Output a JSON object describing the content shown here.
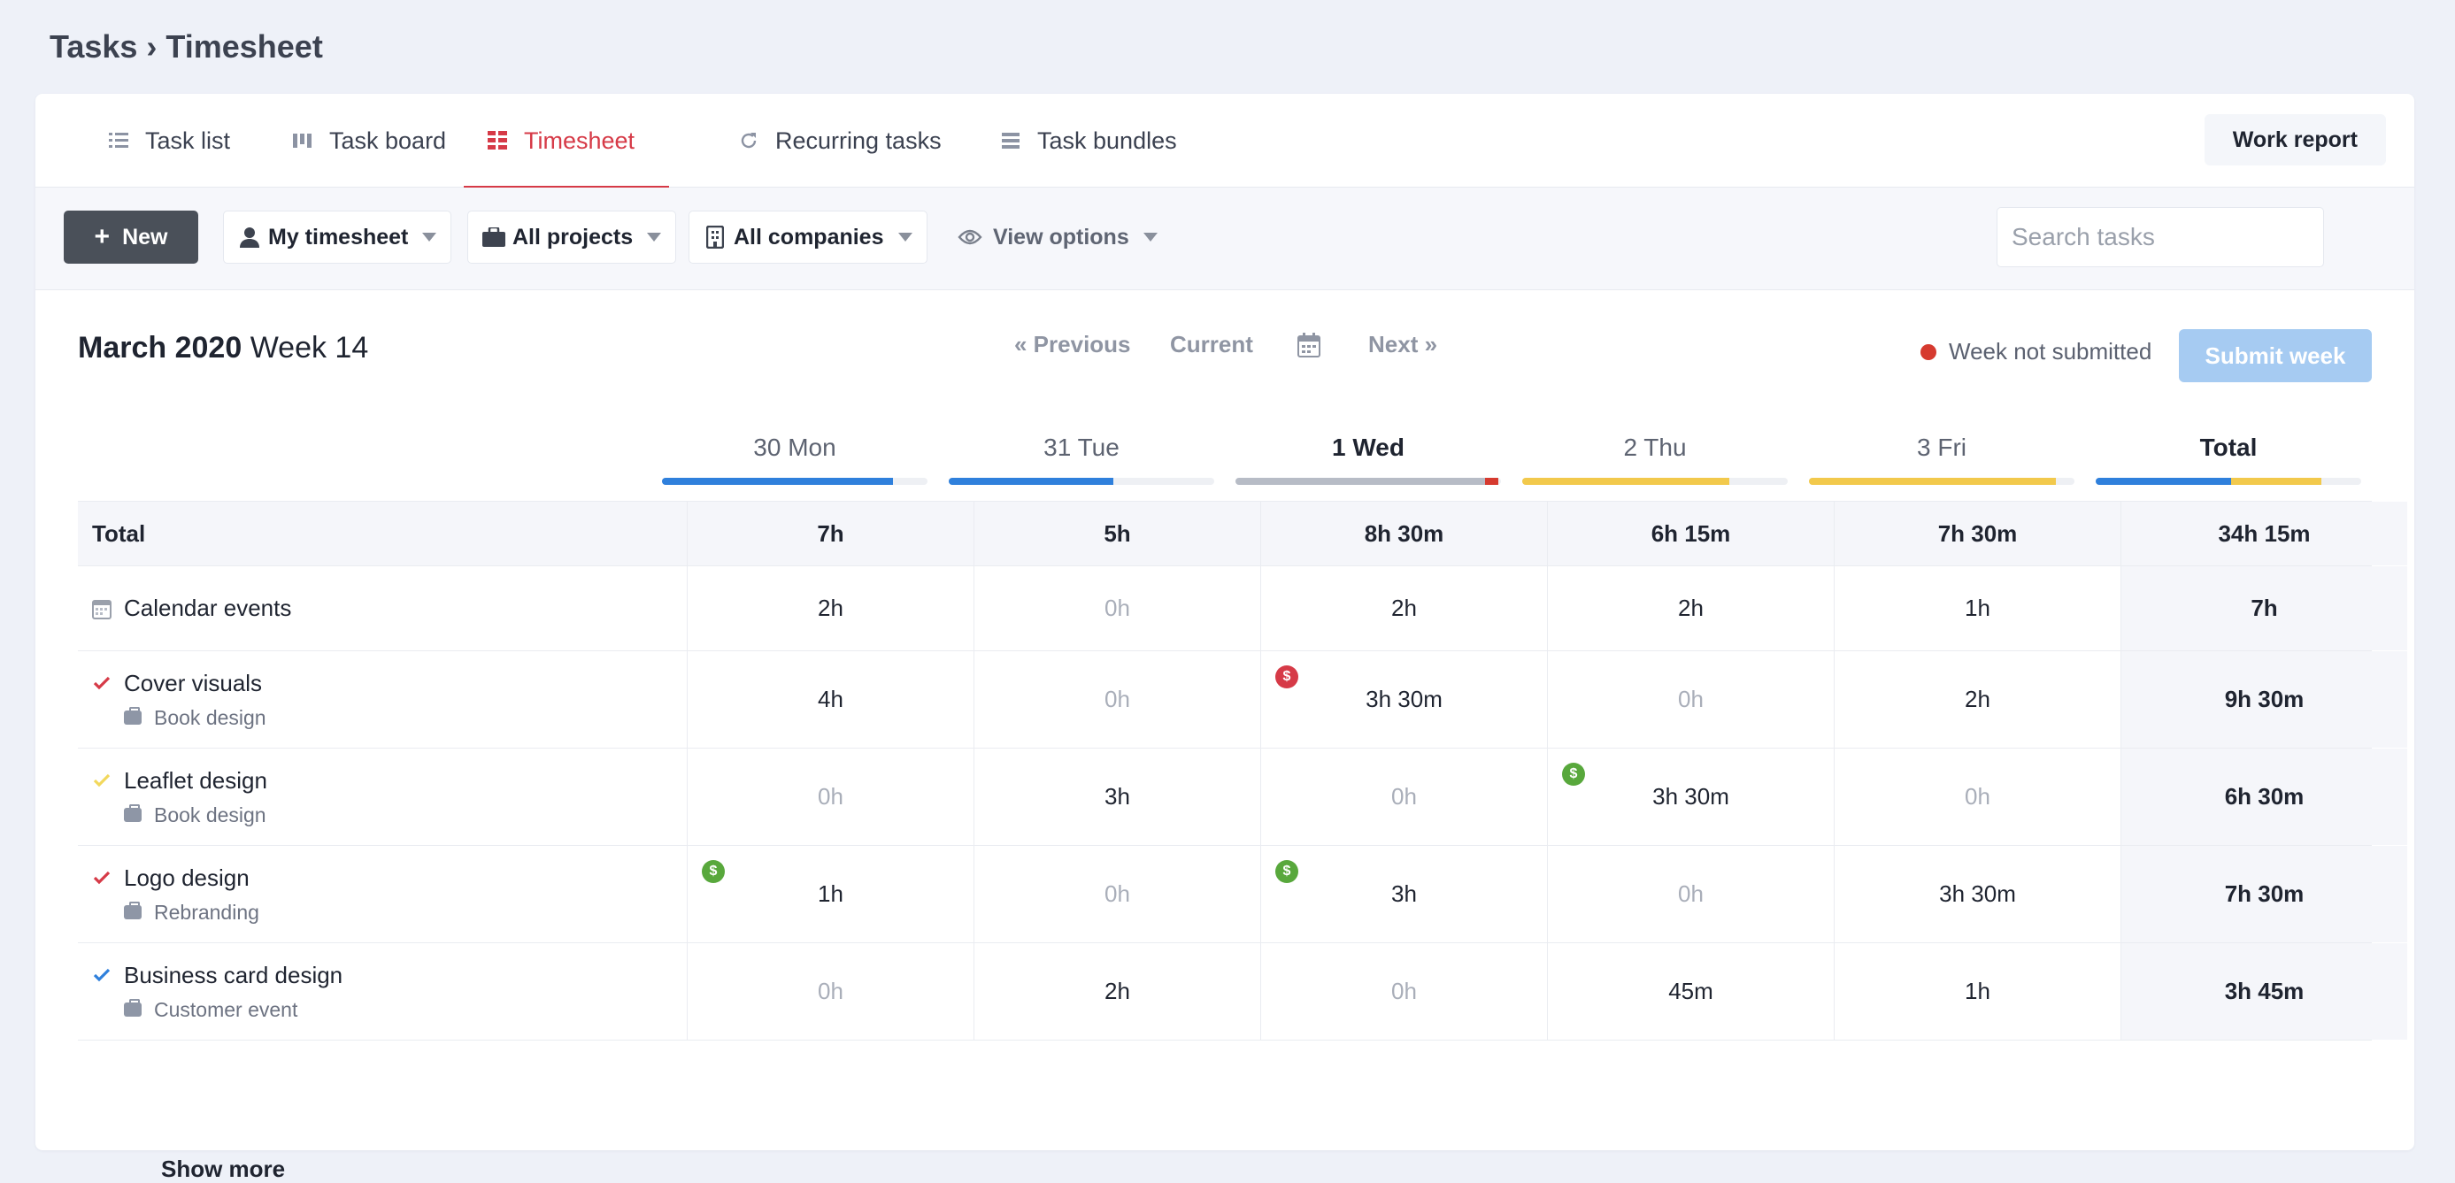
{
  "breadcrumb": "Tasks › Timesheet",
  "tabs": [
    {
      "label": "Task list",
      "icon": "list-icon"
    },
    {
      "label": "Task board",
      "icon": "board-icon"
    },
    {
      "label": "Timesheet",
      "icon": "timesheet-icon",
      "active": true
    },
    {
      "label": "Recurring tasks",
      "icon": "refresh-icon"
    },
    {
      "label": "Task bundles",
      "icon": "bundle-icon"
    }
  ],
  "work_report": "Work report",
  "toolbar": {
    "new_label": "New",
    "my_timesheet": "My timesheet",
    "all_projects": "All projects",
    "all_companies": "All companies",
    "view_options": "View options",
    "search_placeholder": "Search tasks"
  },
  "week": {
    "month": "March 2020",
    "week": "Week 14",
    "previous": "« Previous",
    "current": "Current",
    "next": "Next »",
    "status": "Week not submitted",
    "submit": "Submit week"
  },
  "days": [
    {
      "label": "30 Mon",
      "bold": false,
      "bar": [
        {
          "pct": 87,
          "color": "#2f80dc"
        }
      ]
    },
    {
      "label": "31 Tue",
      "bold": false,
      "bar": [
        {
          "pct": 62,
          "color": "#2f80dc"
        }
      ]
    },
    {
      "label": "1 Wed",
      "bold": true,
      "bar": [
        {
          "pct": 94,
          "color": "#b7bcc6"
        },
        {
          "pct": 5,
          "color": "#d63a2f"
        }
      ]
    },
    {
      "label": "2 Thu",
      "bold": false,
      "bar": [
        {
          "pct": 78,
          "color": "#f2c94c"
        }
      ]
    },
    {
      "label": "3 Fri",
      "bold": false,
      "bar": [
        {
          "pct": 93,
          "color": "#f2c94c"
        }
      ]
    },
    {
      "label": "Total",
      "bold": true,
      "bar": [
        {
          "pct": 51,
          "color": "#2f80dc"
        },
        {
          "pct": 34,
          "color": "#f2c94c"
        }
      ]
    }
  ],
  "total_row": {
    "label": "Total",
    "values": [
      "7h",
      "5h",
      "8h 30m",
      "6h 15m",
      "7h 30m",
      "34h 15m"
    ]
  },
  "rows": [
    {
      "name": "Calendar events",
      "icon": "calendar-icon",
      "project": "",
      "values": [
        "2h",
        "0h",
        "2h",
        "2h",
        "1h",
        "7h"
      ],
      "billable": [
        null,
        null,
        null,
        null,
        null
      ]
    },
    {
      "name": "Cover visuals",
      "icon": "check-icon",
      "icon_color": "#d63a47",
      "project": "Book design",
      "values": [
        "4h",
        "0h",
        "3h 30m",
        "0h",
        "2h",
        "9h 30m"
      ],
      "billable": [
        null,
        null,
        "red",
        null,
        null
      ]
    },
    {
      "name": "Leaflet design",
      "icon": "check-icon",
      "icon_color": "#f2d85c",
      "project": "Book design",
      "values": [
        "0h",
        "3h",
        "0h",
        "3h 30m",
        "0h",
        "6h 30m"
      ],
      "billable": [
        null,
        null,
        null,
        "green",
        null
      ]
    },
    {
      "name": "Logo design",
      "icon": "check-icon",
      "icon_color": "#d63a47",
      "project": "Rebranding",
      "values": [
        "1h",
        "0h",
        "3h",
        "0h",
        "3h 30m",
        "7h 30m"
      ],
      "billable": [
        "green",
        null,
        "green",
        null,
        null
      ]
    },
    {
      "name": "Business card design",
      "icon": "check-icon",
      "icon_color": "#2f80dc",
      "project": "Customer event",
      "values": [
        "0h",
        "2h",
        "0h",
        "45m",
        "1h",
        "3h 45m"
      ],
      "billable": [
        null,
        null,
        null,
        null,
        null
      ]
    }
  ],
  "billable_glyph": "$",
  "show_more": "Show more"
}
